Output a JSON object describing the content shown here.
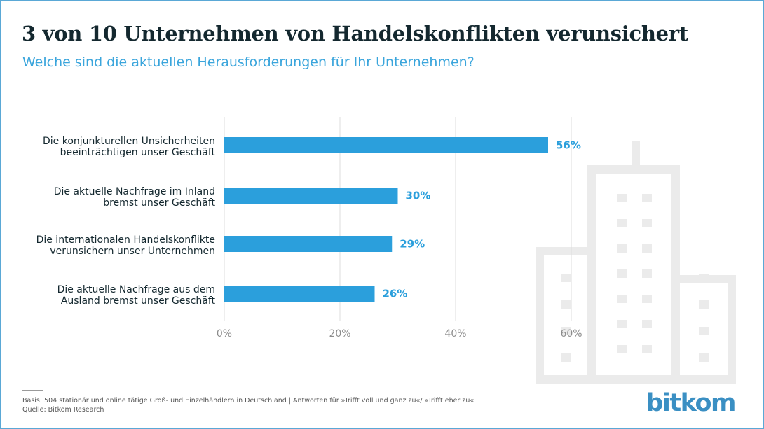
{
  "header": {
    "title": "3 von 10 Unternehmen von Handelskonflikten verunsichert",
    "subtitle": "Welche sind die aktuellen Herausforderungen für Ihr Unternehmen?"
  },
  "chart_data": {
    "type": "bar",
    "orientation": "horizontal",
    "categories": [
      [
        "Die konjunkturellen Unsicherheiten",
        "beeinträchtigen unser Geschäft"
      ],
      [
        "Die aktuelle Nachfrage im Inland",
        "bremst unser Geschäft"
      ],
      [
        "Die internationalen Handelskonflikte",
        "verunsichern unser Unternehmen"
      ],
      [
        "Die aktuelle Nachfrage aus dem",
        "Ausland bremst unser Geschäft"
      ]
    ],
    "values": [
      56,
      30,
      29,
      26
    ],
    "value_labels": [
      "56%",
      "30%",
      "29%",
      "26%"
    ],
    "xlim": [
      0,
      60
    ],
    "xticks": [
      0,
      20,
      40,
      60
    ],
    "xtick_labels": [
      "0%",
      "20%",
      "40%",
      "60%"
    ],
    "grid": true,
    "bar_color": "#2b9fdc",
    "label_color": "#2b9fdc"
  },
  "footer": {
    "basis": "Basis: 504 stationär und online tätige Groß- und Einzelhändlern in Deutschland | Antworten für »Trifft voll und ganz zu«/ »Trifft eher zu«",
    "source": "Quelle: Bitkom Research"
  },
  "brand": {
    "logo": "bitkom",
    "logo_color": "#3a8fc3",
    "decor_icon": "building-skyline-icon"
  }
}
